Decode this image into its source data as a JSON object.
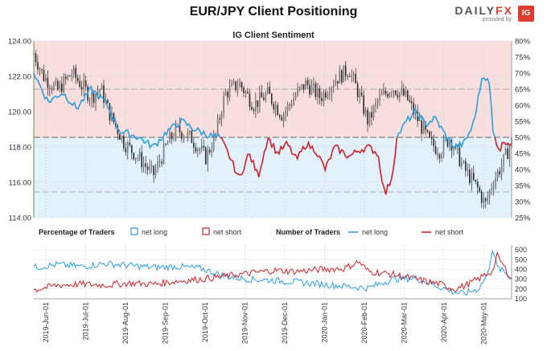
{
  "title": "EUR/JPY Client Positioning",
  "brand": {
    "word_a": "DAILY",
    "word_b": "FX",
    "provided_by": "provided by",
    "badge": "IG"
  },
  "chart_data": [
    {
      "type": "line",
      "title": "IG Client Sentiment",
      "y_left_ticks": [
        "124.00",
        "122.00",
        "120.00",
        "118.00",
        "116.00",
        "114.00"
      ],
      "y_left_range": [
        114,
        124
      ],
      "y_right_ticks": [
        "80%",
        "75%",
        "70%",
        "65%",
        "60%",
        "55%",
        "50%",
        "45%",
        "40%",
        "35%",
        "30%",
        "25%"
      ],
      "y_right_range": [
        25,
        80
      ],
      "reference_lines_pct": [
        50,
        65,
        33
      ],
      "price_keypoints": [
        [
          0,
          123.3
        ],
        [
          0.02,
          122.0
        ],
        [
          0.05,
          121.2
        ],
        [
          0.08,
          122.2
        ],
        [
          0.12,
          120.8
        ],
        [
          0.14,
          121.3
        ],
        [
          0.16,
          119.8
        ],
        [
          0.19,
          118.2
        ],
        [
          0.22,
          117.4
        ],
        [
          0.25,
          116.4
        ],
        [
          0.28,
          118.2
        ],
        [
          0.3,
          119.0
        ],
        [
          0.33,
          118.5
        ],
        [
          0.36,
          117.4
        ],
        [
          0.38,
          118.6
        ],
        [
          0.4,
          121.0
        ],
        [
          0.43,
          121.6
        ],
        [
          0.46,
          120.4
        ],
        [
          0.49,
          121.0
        ],
        [
          0.52,
          119.8
        ],
        [
          0.55,
          121.0
        ],
        [
          0.57,
          121.6
        ],
        [
          0.6,
          120.8
        ],
        [
          0.63,
          121.8
        ],
        [
          0.66,
          122.4
        ],
        [
          0.68,
          121.0
        ],
        [
          0.7,
          119.4
        ],
        [
          0.72,
          120.6
        ],
        [
          0.75,
          121.4
        ],
        [
          0.78,
          120.8
        ],
        [
          0.81,
          119.2
        ],
        [
          0.83,
          118.2
        ],
        [
          0.85,
          117.8
        ],
        [
          0.87,
          118.5
        ],
        [
          0.9,
          116.8
        ],
        [
          0.93,
          115.6
        ],
        [
          0.945,
          114.7
        ],
        [
          0.96,
          116.0
        ],
        [
          0.98,
          117.0
        ],
        [
          1.0,
          118.3
        ]
      ],
      "series": [
        {
          "name": "net long",
          "color": "#2a9fe0",
          "keypoints": [
            [
              0,
              70
            ],
            [
              0.03,
              61
            ],
            [
              0.06,
              64
            ],
            [
              0.09,
              59
            ],
            [
              0.12,
              65
            ],
            [
              0.15,
              61
            ],
            [
              0.18,
              52
            ],
            [
              0.22,
              50
            ],
            [
              0.25,
              47
            ],
            [
              0.28,
              52
            ],
            [
              0.31,
              55
            ],
            [
              0.33,
              53
            ],
            [
              0.36,
              51
            ],
            [
              0.38,
              50
            ],
            [
              0.39,
              50
            ]
          ]
        },
        {
          "name": "net short",
          "color": "#d21f26",
          "keypoints": [
            [
              0.39,
              50
            ],
            [
              0.41,
              44
            ],
            [
              0.43,
              37
            ],
            [
              0.45,
              45
            ],
            [
              0.47,
              38
            ],
            [
              0.49,
              50
            ],
            [
              0.51,
              45
            ],
            [
              0.53,
              48
            ],
            [
              0.55,
              43
            ],
            [
              0.57,
              48
            ],
            [
              0.59,
              46
            ],
            [
              0.61,
              40
            ],
            [
              0.63,
              47
            ],
            [
              0.66,
              44
            ],
            [
              0.68,
              46
            ],
            [
              0.7,
              47
            ],
            [
              0.72,
              45
            ],
            [
              0.735,
              32
            ],
            [
              0.75,
              38
            ],
            [
              0.76,
              50
            ]
          ]
        },
        {
          "name": "net long",
          "color": "#2a9fe0",
          "keypoints": [
            [
              0.76,
              50
            ],
            [
              0.78,
              55
            ],
            [
              0.8,
              58
            ],
            [
              0.82,
              54
            ],
            [
              0.84,
              56
            ],
            [
              0.86,
              51
            ],
            [
              0.88,
              47
            ],
            [
              0.9,
              48
            ],
            [
              0.92,
              54
            ],
            [
              0.94,
              70
            ],
            [
              0.955,
              66
            ],
            [
              0.96,
              52
            ],
            [
              0.965,
              50
            ]
          ]
        },
        {
          "name": "net short",
          "color": "#d21f26",
          "keypoints": [
            [
              0.965,
              50
            ],
            [
              0.975,
              46
            ],
            [
              0.985,
              49
            ],
            [
              1.0,
              48
            ]
          ]
        }
      ]
    },
    {
      "type": "line",
      "legend": {
        "pct_label": "Percentage of Traders",
        "pct_long": "net long",
        "pct_short": "net short",
        "num_label": "Number of Traders",
        "num_long": "net long",
        "num_short": "net short"
      },
      "y_ticks": [
        "600",
        "500",
        "400",
        "300",
        "200",
        "100"
      ],
      "y_range": [
        100,
        650
      ],
      "x_ticks": [
        "2019-Jun-01",
        "2019-Jul-01",
        "2019-Aug-01",
        "2019-Sep-01",
        "2019-Oct-01",
        "2019-Nov-01",
        "2019-Dec-01",
        "2020-Jan-01",
        "2020-Feb-01",
        "2020-Mar-01",
        "2020-Apr-01",
        "2020-May-01"
      ],
      "series": [
        {
          "name": "net long",
          "color": "#2a9fe0",
          "keypoints": [
            [
              0,
              420
            ],
            [
              0.05,
              450
            ],
            [
              0.1,
              430
            ],
            [
              0.15,
              460
            ],
            [
              0.2,
              440
            ],
            [
              0.25,
              420
            ],
            [
              0.3,
              430
            ],
            [
              0.35,
              410
            ],
            [
              0.4,
              330
            ],
            [
              0.45,
              300
            ],
            [
              0.5,
              290
            ],
            [
              0.55,
              270
            ],
            [
              0.6,
              250
            ],
            [
              0.65,
              230
            ],
            [
              0.7,
              210
            ],
            [
              0.75,
              300
            ],
            [
              0.8,
              310
            ],
            [
              0.85,
              220
            ],
            [
              0.88,
              170
            ],
            [
              0.9,
              150
            ],
            [
              0.93,
              200
            ],
            [
              0.95,
              350
            ],
            [
              0.96,
              620
            ],
            [
              0.97,
              420
            ],
            [
              1.0,
              320
            ]
          ]
        },
        {
          "name": "net short",
          "color": "#d21f26",
          "keypoints": [
            [
              0,
              190
            ],
            [
              0.05,
              240
            ],
            [
              0.1,
              250
            ],
            [
              0.15,
              240
            ],
            [
              0.2,
              260
            ],
            [
              0.25,
              250
            ],
            [
              0.3,
              280
            ],
            [
              0.35,
              300
            ],
            [
              0.4,
              330
            ],
            [
              0.45,
              360
            ],
            [
              0.5,
              390
            ],
            [
              0.55,
              380
            ],
            [
              0.6,
              400
            ],
            [
              0.65,
              410
            ],
            [
              0.68,
              480
            ],
            [
              0.7,
              380
            ],
            [
              0.75,
              350
            ],
            [
              0.8,
              300
            ],
            [
              0.85,
              250
            ],
            [
              0.88,
              200
            ],
            [
              0.9,
              230
            ],
            [
              0.93,
              300
            ],
            [
              0.95,
              360
            ],
            [
              0.96,
              380
            ],
            [
              0.97,
              540
            ],
            [
              1.0,
              300
            ]
          ]
        }
      ]
    }
  ]
}
